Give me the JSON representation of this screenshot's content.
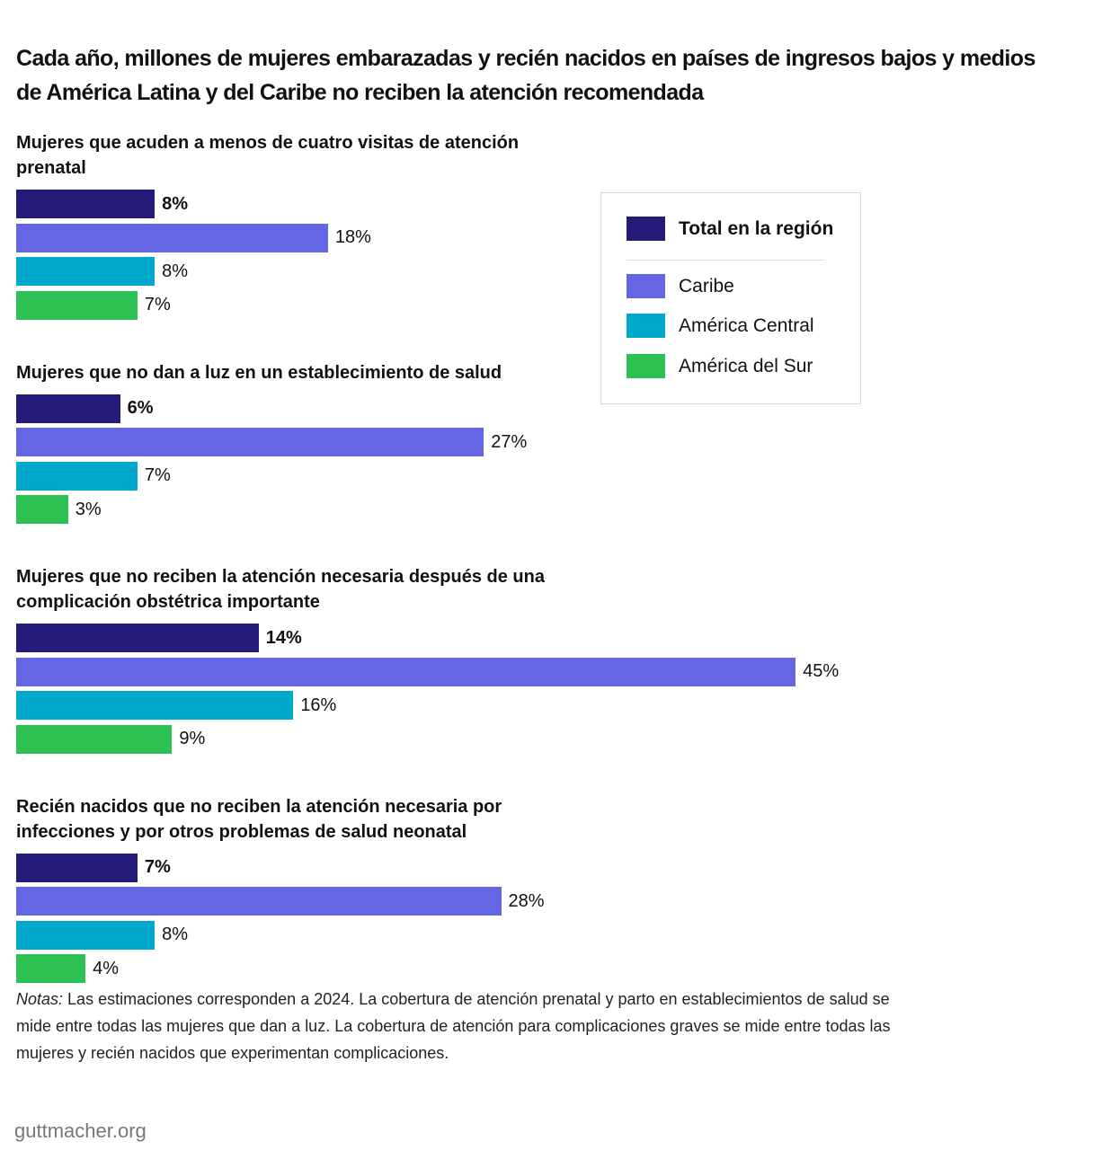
{
  "chart_data": {
    "type": "bar",
    "orientation": "horizontal",
    "title": "Cada año, millones de mujeres embarazadas y recién nacidos en países de ingresos bajos y medios de América Latina y del Caribe no reciben la atención recomendada",
    "categories": [
      "Mujeres que acuden a menos de cuatro visitas de atención prenatal",
      "Mujeres que no dan a luz en un establecimiento de salud",
      "Mujeres que no reciben la atención necesaria después de una complicación obstétrica importante",
      "Recién nacidos que no reciben la atención necesaria por infecciones y por otros problemas de salud neonatal"
    ],
    "series": [
      {
        "name": "Total en la región",
        "color": "#241a78",
        "values": [
          8,
          6,
          14,
          7
        ],
        "value_labels": [
          "8%",
          "6%",
          "14%",
          "7%"
        ]
      },
      {
        "name": "Caribe",
        "color": "#6466e3",
        "values": [
          18,
          27,
          45,
          28
        ],
        "value_labels": [
          "18%",
          "27%",
          "45%",
          "28%"
        ]
      },
      {
        "name": "América Central",
        "color": "#00a9cb",
        "values": [
          8,
          7,
          16,
          8
        ],
        "value_labels": [
          "8%",
          "7%",
          "16%",
          "8%"
        ]
      },
      {
        "name": "América del Sur",
        "color": "#2cc152",
        "values": [
          7,
          3,
          9,
          4
        ],
        "value_labels": [
          "7%",
          "3%",
          "9%",
          "4%"
        ]
      }
    ],
    "legend": "upper right",
    "notes": {
      "label": "Notas:",
      "text": "Las estimaciones corresponden a 2024. La cobertura de atención prenatal y parto en establecimientos de salud se mide entre todas las mujeres que dan a luz. La cobertura de atención para complicaciones graves se mide entre todas las mujeres y recién nacidos que experimentan complicaciones."
    },
    "source": "guttmacher.org"
  }
}
